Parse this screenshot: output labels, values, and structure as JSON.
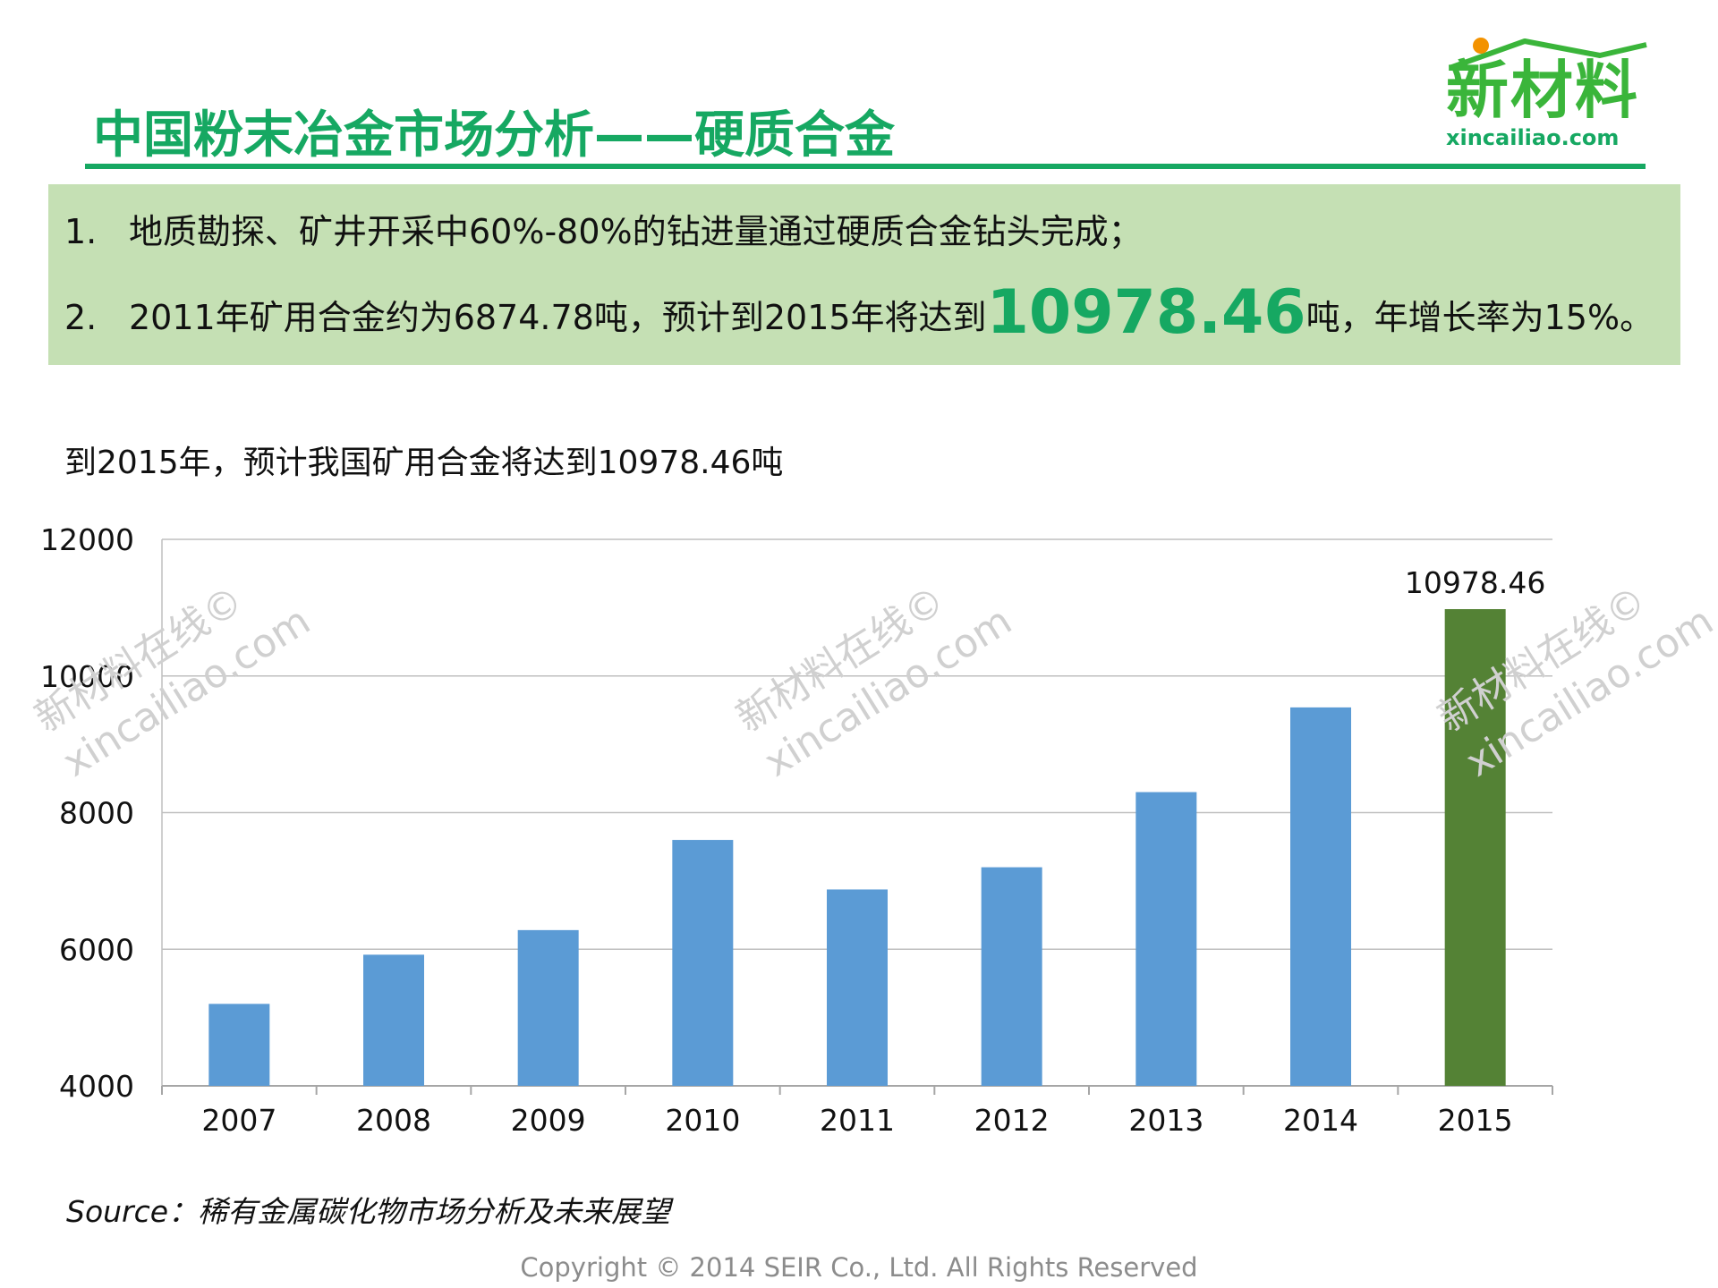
{
  "header": {
    "title": "中国粉末冶金市场分析——硬质合金",
    "logo_text": "新材料",
    "logo_url": "xincailiao.com"
  },
  "points": [
    {
      "num": "1.",
      "text": "地质勘探、矿井开采中60%-80%的钻进量通过硬质合金钻头完成；"
    },
    {
      "num": "2.",
      "text_before": "2011年矿用合金约为6874.78吨，预计到2015年将达到",
      "highlight": "10978.46",
      "text_after": "吨，年增长率为15%。"
    }
  ],
  "watermark": {
    "line1": "新材料在线©",
    "line2": "xincailiao.com"
  },
  "chart_data": {
    "type": "bar",
    "title": "到2015年，预计我国矿用合金将达到10978.46吨",
    "categories": [
      "2007",
      "2008",
      "2009",
      "2010",
      "2011",
      "2012",
      "2013",
      "2014",
      "2015"
    ],
    "values": [
      5200,
      5920,
      6280,
      7600,
      6874.78,
      7200,
      8300,
      9540,
      10978.46
    ],
    "data_labels": [
      "",
      "",
      "",
      "",
      "",
      "",
      "",
      "",
      "10978.46"
    ],
    "ylim": [
      4000,
      12000
    ],
    "yticks": [
      "4000",
      "6000",
      "8000",
      "10000",
      "12000"
    ],
    "grid": true,
    "colors": {
      "default": "#5b9bd5",
      "highlight": "#548235"
    },
    "highlight_index": 8
  },
  "footer": {
    "source": "Source：稀有金属碳化物市场分析及未来展望",
    "copyright": "Copyright © 2014  SEIR Co., Ltd. All Rights Reserved"
  }
}
